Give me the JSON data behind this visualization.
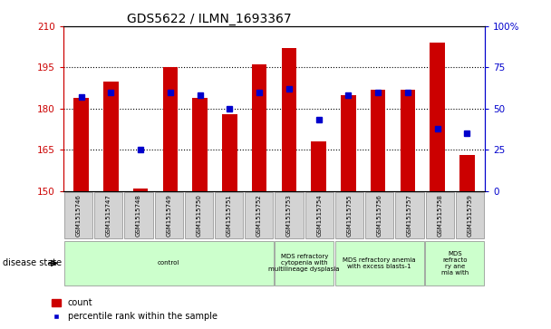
{
  "title": "GDS5622 / ILMN_1693367",
  "samples": [
    "GSM1515746",
    "GSM1515747",
    "GSM1515748",
    "GSM1515749",
    "GSM1515750",
    "GSM1515751",
    "GSM1515752",
    "GSM1515753",
    "GSM1515754",
    "GSM1515755",
    "GSM1515756",
    "GSM1515757",
    "GSM1515758",
    "GSM1515759"
  ],
  "count_values": [
    184,
    190,
    151,
    195,
    184,
    178,
    196,
    202,
    168,
    185,
    187,
    187,
    204,
    163
  ],
  "percentile_values": [
    57,
    60,
    25,
    60,
    58,
    50,
    60,
    62,
    43,
    58,
    60,
    60,
    38,
    35
  ],
  "ylim_left": [
    150,
    210
  ],
  "ylim_right": [
    0,
    100
  ],
  "yticks_left": [
    150,
    165,
    180,
    195,
    210
  ],
  "yticks_right": [
    0,
    25,
    50,
    75,
    100
  ],
  "ytick_labels_right": [
    "0",
    "25",
    "50",
    "75",
    "100%"
  ],
  "bar_color": "#cc0000",
  "marker_color": "#0000cc",
  "bar_bottom": 150,
  "disease_groups": [
    {
      "label": "control",
      "start": 0,
      "end": 7
    },
    {
      "label": "MDS refractory\ncytopenia with\nmultilineage dysplasia",
      "start": 7,
      "end": 9
    },
    {
      "label": "MDS refractory anemia\nwith excess blasts-1",
      "start": 9,
      "end": 12
    },
    {
      "label": "MDS\nrefracto\nry ane\nmia with",
      "start": 12,
      "end": 14
    }
  ],
  "disease_state_label": "disease state",
  "legend_count_label": "count",
  "legend_pct_label": "percentile rank within the sample",
  "left_axis_color": "#cc0000",
  "right_axis_color": "#0000cc",
  "grid_lines": [
    165,
    180,
    195
  ],
  "sample_box_color": "#d3d3d3",
  "disease_box_color": "#ccffcc",
  "bar_width": 0.5
}
